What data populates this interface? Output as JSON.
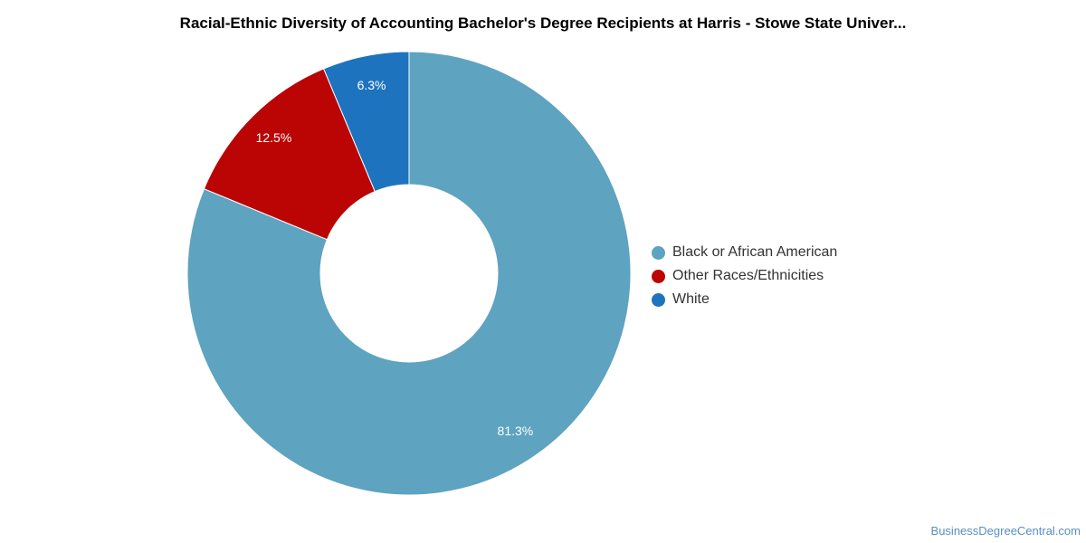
{
  "title": "Racial-Ethnic Diversity of Accounting Bachelor's Degree Recipients at Harris - Stowe State Univer...",
  "watermark": "BusinessDegreeCentral.com",
  "chart_data": {
    "type": "pie",
    "variant": "donut",
    "title": "Racial-Ethnic Diversity of Accounting Bachelor's Degree Recipients at Harris - Stowe State Univer...",
    "legend_position": "right",
    "slices": [
      {
        "name": "Black or African American",
        "value": 81.3,
        "label": "81.3%",
        "color": "#5ea3c0"
      },
      {
        "name": "Other Races/Ethnicities",
        "value": 12.5,
        "label": "12.5%",
        "color": "#bb0404"
      },
      {
        "name": "White",
        "value": 6.3,
        "label": "6.3%",
        "color": "#1e73be"
      }
    ]
  }
}
